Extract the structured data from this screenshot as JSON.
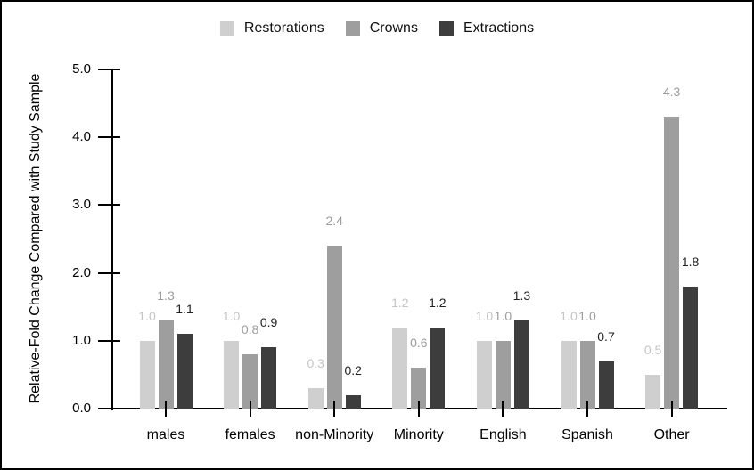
{
  "chart_data": {
    "type": "bar",
    "title": "",
    "xlabel": "",
    "ylabel": "Relative-Fold Change Compared with Study Sample",
    "ylim": [
      0,
      5
    ],
    "yticks": [
      "0.0",
      "1.0",
      "2.0",
      "3.0",
      "4.0",
      "5.0"
    ],
    "grid": false,
    "legend_position": "top-center",
    "bar_value_labels": true,
    "categories": [
      "males",
      "females",
      "non-Minority",
      "Minority",
      "English",
      "Spanish",
      "Other"
    ],
    "series": [
      {
        "name": "Restorations",
        "color": "#cfcfcf",
        "label_color": "#c4c4c4",
        "values": [
          1.0,
          1.0,
          0.3,
          1.2,
          1.0,
          1.0,
          0.5
        ]
      },
      {
        "name": "Crowns",
        "color": "#9e9e9e",
        "label_color": "#9c9c9c",
        "values": [
          1.3,
          0.8,
          2.4,
          0.6,
          1.0,
          1.0,
          4.3
        ]
      },
      {
        "name": "Extractions",
        "color": "#3d3d3d",
        "label_color": "#222222",
        "values": [
          1.1,
          0.9,
          0.2,
          1.2,
          1.3,
          0.7,
          1.8
        ]
      }
    ]
  }
}
